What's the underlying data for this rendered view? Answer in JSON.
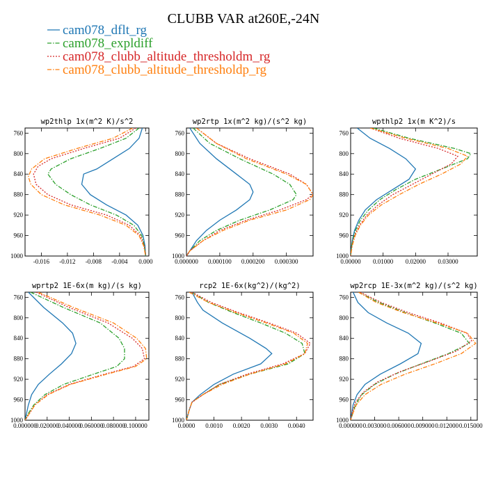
{
  "figure": {
    "title": "CLUBB VAR at260E,-24N",
    "colors": {
      "series1": "#1f77b4",
      "series2": "#2ca02c",
      "series3": "#d62728",
      "series4": "#ff7f0e"
    }
  },
  "legend": [
    {
      "name": "cam078_dflt_rg",
      "color": "#1f77b4",
      "dash": "solid"
    },
    {
      "name": "cam078_expldiff",
      "color": "#2ca02c",
      "dash": "dashdot"
    },
    {
      "name": "cam078_clubb_altitude_thresholdm_rg",
      "color": "#d62728",
      "dash": "dotted"
    },
    {
      "name": "cam078_clubb_altitude_thresholdp_rg",
      "color": "#ff7f0e",
      "dash": "dashdot"
    }
  ],
  "chart_data": [
    {
      "type": "line",
      "title": "wp2thlp  1x(m^2 K)/s^2",
      "xlim": [
        -0.0185,
        0.0005
      ],
      "ylim": [
        1000,
        750
      ],
      "xticks": [
        -0.016,
        -0.012,
        -0.008,
        -0.004,
        0.0
      ],
      "xtick_labels": [
        "-0.016",
        "-0.012",
        "-0.008",
        "-0.004",
        "0.000"
      ],
      "yticks": [
        760,
        800,
        840,
        880,
        920,
        960,
        1000
      ],
      "ytick_labels": [
        "760",
        "800",
        "840",
        "880",
        "920",
        "960",
        "1000"
      ],
      "series": [
        {
          "y": [
            750,
            770,
            790,
            810,
            830,
            840,
            860,
            880,
            900,
            920,
            940,
            960,
            980,
            1000
          ],
          "x": [
            -0.0005,
            -0.001,
            -0.0025,
            -0.005,
            -0.0075,
            -0.0095,
            -0.0098,
            -0.0085,
            -0.006,
            -0.003,
            -0.0012,
            -0.0004,
            -0.0001,
            0.0
          ]
        },
        {
          "y": [
            750,
            770,
            790,
            810,
            830,
            840,
            860,
            880,
            900,
            920,
            940,
            960,
            980,
            1000
          ],
          "x": [
            -0.001,
            -0.003,
            -0.007,
            -0.0115,
            -0.0145,
            -0.015,
            -0.0138,
            -0.0115,
            -0.0085,
            -0.0045,
            -0.0018,
            -0.0006,
            -0.0002,
            0.0
          ]
        },
        {
          "y": [
            750,
            770,
            790,
            810,
            825,
            840,
            860,
            880,
            900,
            920,
            940,
            960,
            980,
            1000
          ],
          "x": [
            -0.0015,
            -0.004,
            -0.0095,
            -0.0145,
            -0.0165,
            -0.0172,
            -0.0168,
            -0.015,
            -0.0115,
            -0.006,
            -0.0025,
            -0.0008,
            -0.0002,
            0.0
          ]
        },
        {
          "y": [
            750,
            770,
            790,
            810,
            830,
            845,
            860,
            880,
            900,
            920,
            940,
            960,
            980,
            1000
          ],
          "x": [
            -0.002,
            -0.005,
            -0.0105,
            -0.0155,
            -0.0175,
            -0.018,
            -0.0176,
            -0.016,
            -0.0125,
            -0.007,
            -0.003,
            -0.001,
            -0.0003,
            0.0
          ]
        }
      ]
    },
    {
      "type": "line",
      "title": "wp2rtp  1x(m^2 kg)/(s^2 kg)",
      "xlim": [
        0,
        0.00038
      ],
      "ylim": [
        1000,
        750
      ],
      "xticks": [
        0,
        0.0001,
        0.0002,
        0.0003
      ],
      "xtick_labels": [
        "0.000000",
        "0.000100",
        "0.000200",
        "0.000300"
      ],
      "yticks": [
        760,
        800,
        840,
        880,
        920,
        960,
        1000
      ],
      "ytick_labels": [
        "760",
        "800",
        "840",
        "880",
        "920",
        "960",
        "1000"
      ],
      "series": [
        {
          "y": [
            750,
            780,
            810,
            840,
            860,
            875,
            890,
            910,
            930,
            950,
            970,
            990,
            1000
          ],
          "x": [
            1e-05,
            4e-05,
            9e-05,
            0.00015,
            0.00019,
            0.0002,
            0.00019,
            0.00015,
            0.0001,
            6e-05,
            3e-05,
            1e-05,
            0.0
          ]
        },
        {
          "y": [
            750,
            780,
            810,
            840,
            860,
            880,
            890,
            910,
            930,
            950,
            970,
            990,
            1000
          ],
          "x": [
            2e-05,
            7e-05,
            0.00016,
            0.00026,
            0.00031,
            0.00033,
            0.00032,
            0.00025,
            0.00016,
            9e-05,
            4e-05,
            1e-05,
            0.0
          ]
        },
        {
          "y": [
            750,
            780,
            810,
            840,
            860,
            880,
            890,
            910,
            930,
            950,
            970,
            990,
            1000
          ],
          "x": [
            3e-05,
            9e-05,
            0.00019,
            0.00031,
            0.00036,
            0.00038,
            0.00036,
            0.00028,
            0.00018,
            0.0001,
            5e-05,
            1e-05,
            0.0
          ]
        },
        {
          "y": [
            750,
            780,
            810,
            840,
            860,
            880,
            890,
            910,
            930,
            950,
            970,
            990,
            1000
          ],
          "x": [
            3e-05,
            9e-05,
            0.00018,
            0.0003,
            0.00036,
            0.00038,
            0.00037,
            0.0003,
            0.00019,
            0.00011,
            5e-05,
            1e-05,
            0.0
          ]
        }
      ]
    },
    {
      "type": "line",
      "title": "wpthlp2  1x(m K^2)/s",
      "xlim": [
        0,
        0.039
      ],
      "ylim": [
        1000,
        750
      ],
      "xticks": [
        0,
        0.01,
        0.02,
        0.03
      ],
      "xtick_labels": [
        "0.00000",
        "0.01000",
        "0.02000",
        "0.03000"
      ],
      "yticks": [
        760,
        800,
        840,
        880,
        920,
        960,
        1000
      ],
      "ytick_labels": [
        "760",
        "800",
        "840",
        "880",
        "920",
        "960",
        "1000"
      ],
      "series": [
        {
          "y": [
            750,
            770,
            790,
            810,
            830,
            850,
            870,
            890,
            910,
            930,
            950,
            970,
            990,
            1000
          ],
          "x": [
            0.002,
            0.006,
            0.012,
            0.017,
            0.02,
            0.018,
            0.013,
            0.008,
            0.0045,
            0.0025,
            0.0012,
            0.0005,
            0.0001,
            0.0
          ]
        },
        {
          "y": [
            750,
            770,
            790,
            800,
            810,
            830,
            850,
            870,
            890,
            910,
            930,
            950,
            970,
            990,
            1000
          ],
          "x": [
            0.007,
            0.018,
            0.032,
            0.037,
            0.036,
            0.028,
            0.02,
            0.014,
            0.009,
            0.0055,
            0.003,
            0.0015,
            0.0006,
            0.0001,
            0.0
          ]
        },
        {
          "y": [
            750,
            770,
            790,
            805,
            820,
            840,
            860,
            880,
            900,
            920,
            940,
            960,
            980,
            1000
          ],
          "x": [
            0.006,
            0.015,
            0.027,
            0.033,
            0.031,
            0.025,
            0.019,
            0.013,
            0.0085,
            0.005,
            0.0027,
            0.0012,
            0.0004,
            0.0
          ]
        },
        {
          "y": [
            750,
            770,
            790,
            805,
            820,
            840,
            860,
            880,
            900,
            920,
            940,
            960,
            980,
            1000
          ],
          "x": [
            0.006,
            0.017,
            0.03,
            0.036,
            0.034,
            0.028,
            0.021,
            0.015,
            0.0095,
            0.0055,
            0.003,
            0.0014,
            0.0005,
            0.0
          ]
        }
      ]
    },
    {
      "type": "line",
      "title": "wprtp2  1E-6x(m kg)/(s kg)",
      "xlim": [
        0,
        0.112
      ],
      "ylim": [
        1000,
        750
      ],
      "xticks": [
        0,
        0.02,
        0.04,
        0.06,
        0.08,
        0.1
      ],
      "xtick_labels": [
        "0.000000",
        "0.020000",
        "0.040000",
        "0.060000",
        "0.080000",
        "0.100000"
      ],
      "yticks": [
        760,
        800,
        840,
        880,
        920,
        960,
        1000
      ],
      "ytick_labels": [
        "760",
        "800",
        "840",
        "880",
        "920",
        "960",
        "1000"
      ],
      "series": [
        {
          "y": [
            750,
            780,
            810,
            830,
            850,
            870,
            890,
            910,
            930,
            950,
            970,
            990,
            1000
          ],
          "x": [
            0.003,
            0.017,
            0.034,
            0.043,
            0.046,
            0.042,
            0.033,
            0.022,
            0.012,
            0.006,
            0.003,
            0.001,
            0.0
          ]
        },
        {
          "y": [
            750,
            780,
            810,
            840,
            860,
            880,
            895,
            910,
            930,
            950,
            970,
            990,
            1000
          ],
          "x": [
            0.005,
            0.035,
            0.068,
            0.085,
            0.09,
            0.09,
            0.083,
            0.062,
            0.035,
            0.018,
            0.008,
            0.002,
            0.0
          ]
        },
        {
          "y": [
            750,
            780,
            810,
            840,
            860,
            880,
            895,
            910,
            930,
            950,
            970,
            990,
            1000
          ],
          "x": [
            0.01,
            0.04,
            0.075,
            0.097,
            0.106,
            0.108,
            0.098,
            0.072,
            0.04,
            0.02,
            0.009,
            0.003,
            0.0
          ]
        },
        {
          "y": [
            750,
            780,
            810,
            840,
            860,
            880,
            895,
            910,
            930,
            950,
            970,
            990,
            1000
          ],
          "x": [
            0.012,
            0.044,
            0.08,
            0.101,
            0.109,
            0.11,
            0.1,
            0.074,
            0.041,
            0.021,
            0.009,
            0.003,
            0.0
          ]
        }
      ]
    },
    {
      "type": "line",
      "title": "rcp2  1E-6x(kg^2)/(kg^2)",
      "xlim": [
        0,
        0.0046
      ],
      "ylim": [
        1000,
        750
      ],
      "xticks": [
        0,
        0.001,
        0.002,
        0.003,
        0.004
      ],
      "xtick_labels": [
        "0.0000",
        "0.0010",
        "0.0020",
        "0.0030",
        "0.0040"
      ],
      "yticks": [
        760,
        800,
        840,
        880,
        920,
        960,
        1000
      ],
      "ytick_labels": [
        "760",
        "800",
        "840",
        "880",
        "920",
        "960",
        "1000"
      ],
      "series": [
        {
          "y": [
            750,
            770,
            785,
            810,
            840,
            860,
            870,
            890,
            910,
            930,
            950,
            965,
            980,
            1000
          ],
          "x": [
            0.0002,
            0.0004,
            0.0006,
            0.0013,
            0.0023,
            0.0029,
            0.0031,
            0.0027,
            0.0017,
            0.001,
            0.0005,
            0.0002,
            0.0001,
            0.0
          ]
        },
        {
          "y": [
            750,
            770,
            790,
            810,
            830,
            850,
            870,
            890,
            910,
            930,
            950,
            965,
            980,
            1000
          ],
          "x": [
            0.0002,
            0.0008,
            0.0017,
            0.0027,
            0.0036,
            0.0042,
            0.0043,
            0.0037,
            0.0023,
            0.0012,
            0.0006,
            0.0002,
            0.0001,
            0.0
          ]
        },
        {
          "y": [
            750,
            770,
            790,
            810,
            830,
            850,
            870,
            890,
            910,
            930,
            950,
            965,
            980,
            1000
          ],
          "x": [
            0.0002,
            0.0009,
            0.0019,
            0.003,
            0.004,
            0.0045,
            0.0043,
            0.0035,
            0.0022,
            0.0012,
            0.0006,
            0.0002,
            0.0001,
            0.0
          ]
        },
        {
          "y": [
            750,
            770,
            790,
            810,
            830,
            850,
            870,
            890,
            910,
            930,
            950,
            965,
            980,
            1000
          ],
          "x": [
            0.0001,
            0.0008,
            0.0018,
            0.0029,
            0.0039,
            0.0044,
            0.0043,
            0.0036,
            0.0023,
            0.0013,
            0.0006,
            0.0002,
            0.0001,
            0.0
          ]
        }
      ]
    },
    {
      "type": "line",
      "title": "wp2rcp  1E-3x(m^2 kg)/(s^2 kg)",
      "xlim": [
        0,
        0.0158
      ],
      "ylim": [
        1000,
        750
      ],
      "xticks": [
        0,
        0.003,
        0.006,
        0.009,
        0.012,
        0.015
      ],
      "xtick_labels": [
        "0.000000",
        "0.003000",
        "0.006000",
        "0.009000",
        "0.012000",
        "0.015000"
      ],
      "yticks": [
        760,
        800,
        840,
        880,
        920,
        960,
        1000
      ],
      "ytick_labels": [
        "760",
        "800",
        "840",
        "880",
        "920",
        "960",
        "1000"
      ],
      "series": [
        {
          "y": [
            750,
            770,
            790,
            810,
            830,
            850,
            870,
            890,
            910,
            930,
            950,
            970,
            990,
            1000
          ],
          "x": [
            0.0003,
            0.0009,
            0.0022,
            0.0045,
            0.0072,
            0.0088,
            0.0084,
            0.0062,
            0.0037,
            0.0018,
            0.0008,
            0.0003,
            0.0001,
            0.0
          ]
        },
        {
          "y": [
            750,
            770,
            790,
            810,
            830,
            850,
            870,
            890,
            910,
            930,
            950,
            970,
            990,
            1000
          ],
          "x": [
            0.001,
            0.0035,
            0.0068,
            0.0105,
            0.0138,
            0.0148,
            0.0122,
            0.0088,
            0.0055,
            0.003,
            0.0014,
            0.0006,
            0.0002,
            0.0
          ]
        },
        {
          "y": [
            750,
            770,
            790,
            810,
            830,
            845,
            865,
            885,
            905,
            925,
            945,
            965,
            985,
            1000
          ],
          "x": [
            0.0012,
            0.0038,
            0.0072,
            0.0112,
            0.0145,
            0.0151,
            0.0132,
            0.0098,
            0.0062,
            0.0034,
            0.0016,
            0.0006,
            0.0002,
            0.0
          ]
        },
        {
          "y": [
            750,
            770,
            790,
            810,
            830,
            850,
            870,
            890,
            910,
            930,
            950,
            970,
            990,
            1000
          ],
          "x": [
            0.001,
            0.0032,
            0.0066,
            0.0108,
            0.0146,
            0.0156,
            0.0138,
            0.0105,
            0.0068,
            0.0038,
            0.0018,
            0.0007,
            0.0002,
            0.0
          ]
        }
      ]
    }
  ]
}
